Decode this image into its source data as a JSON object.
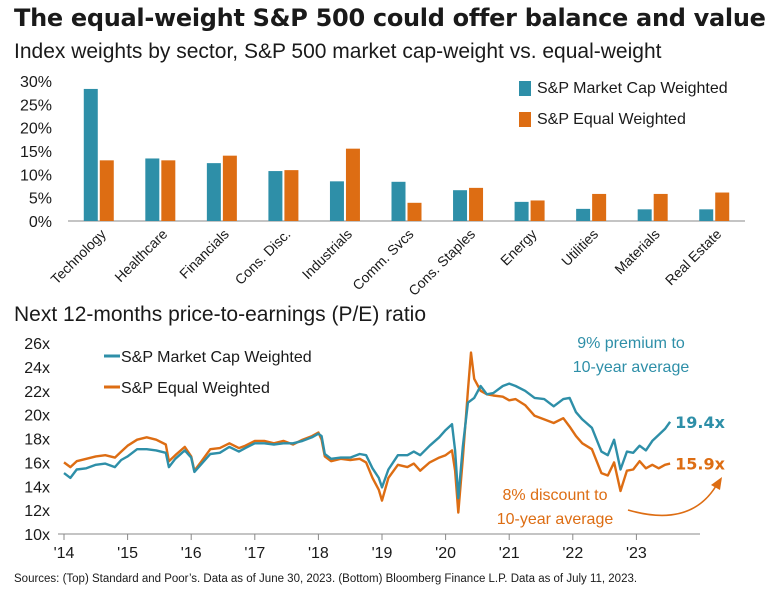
{
  "title": "The equal-weight S&P 500 could offer balance and value",
  "source": "Sources: (Top) Standard and Poor’s. Data as of June 30, 2023. (Bottom) Bloomberg Finance L.P. Data as of July 11, 2023.",
  "colors": {
    "cap": "#2e8fa8",
    "equal": "#dd6d13",
    "text": "#1a1a1a",
    "axis": "#888888"
  },
  "chart_data": [
    {
      "type": "bar",
      "title": "Index weights by sector, S&P 500 market cap-weight vs. equal-weight",
      "categories": [
        "Technology",
        "Healthcare",
        "Financials",
        "Cons. Disc.",
        "Industrials",
        "Comm. Svcs",
        "Cons. Staples",
        "Energy",
        "Utilities",
        "Materials",
        "Real Estate"
      ],
      "series": [
        {
          "name": "S&P Market Cap Weighted",
          "values": [
            28.3,
            13.4,
            12.4,
            10.7,
            8.5,
            8.4,
            6.6,
            4.1,
            2.6,
            2.5,
            2.5
          ]
        },
        {
          "name": "S&P Equal Weighted",
          "values": [
            13.0,
            13.0,
            14.0,
            10.9,
            15.5,
            3.9,
            7.1,
            4.4,
            5.8,
            5.8,
            6.1
          ]
        }
      ],
      "ylim": [
        0,
        30
      ],
      "yticks": [
        "0%",
        "5%",
        "10%",
        "15%",
        "20%",
        "25%",
        "30%"
      ],
      "legend_position": "top-right"
    },
    {
      "type": "line",
      "title": "Next 12-months price-to-earnings (P/E) ratio",
      "ylim": [
        10,
        26
      ],
      "yticks": [
        "10x",
        "12x",
        "14x",
        "16x",
        "18x",
        "20x",
        "22x",
        "24x",
        "26x"
      ],
      "xticks": [
        "'14",
        "'15",
        "'16",
        "'17",
        "'18",
        "'19",
        "'20",
        "'21",
        "'22",
        "'23"
      ],
      "xrange": [
        2014.0,
        2023.53
      ],
      "series": [
        {
          "name": "S&P Market Cap Weighted",
          "end_label": "19.4x",
          "points": [
            [
              2014.0,
              15.1
            ],
            [
              2014.1,
              14.7
            ],
            [
              2014.2,
              15.4
            ],
            [
              2014.35,
              15.5
            ],
            [
              2014.5,
              15.8
            ],
            [
              2014.65,
              15.9
            ],
            [
              2014.8,
              15.6
            ],
            [
              2014.9,
              16.2
            ],
            [
              2015.0,
              16.5
            ],
            [
              2015.15,
              17.1
            ],
            [
              2015.3,
              17.1
            ],
            [
              2015.45,
              17.0
            ],
            [
              2015.6,
              16.8
            ],
            [
              2015.65,
              15.6
            ],
            [
              2015.75,
              16.3
            ],
            [
              2015.9,
              17.0
            ],
            [
              2016.0,
              16.4
            ],
            [
              2016.05,
              15.2
            ],
            [
              2016.15,
              15.8
            ],
            [
              2016.3,
              16.7
            ],
            [
              2016.45,
              16.8
            ],
            [
              2016.6,
              17.3
            ],
            [
              2016.75,
              16.9
            ],
            [
              2016.85,
              17.2
            ],
            [
              2017.0,
              17.6
            ],
            [
              2017.15,
              17.6
            ],
            [
              2017.3,
              17.5
            ],
            [
              2017.45,
              17.6
            ],
            [
              2017.6,
              17.6
            ],
            [
              2017.75,
              17.8
            ],
            [
              2017.9,
              18.1
            ],
            [
              2018.0,
              18.4
            ],
            [
              2018.05,
              18.2
            ],
            [
              2018.1,
              16.7
            ],
            [
              2018.2,
              16.3
            ],
            [
              2018.35,
              16.4
            ],
            [
              2018.5,
              16.4
            ],
            [
              2018.65,
              16.7
            ],
            [
              2018.75,
              16.6
            ],
            [
              2018.85,
              15.5
            ],
            [
              2018.95,
              14.7
            ],
            [
              2019.0,
              13.9
            ],
            [
              2019.1,
              15.4
            ],
            [
              2019.25,
              16.6
            ],
            [
              2019.4,
              16.6
            ],
            [
              2019.5,
              16.9
            ],
            [
              2019.6,
              16.6
            ],
            [
              2019.75,
              17.4
            ],
            [
              2019.9,
              18.1
            ],
            [
              2020.0,
              18.7
            ],
            [
              2020.1,
              19.2
            ],
            [
              2020.15,
              17.0
            ],
            [
              2020.2,
              13.0
            ],
            [
              2020.27,
              17.3
            ],
            [
              2020.35,
              21.0
            ],
            [
              2020.45,
              21.4
            ],
            [
              2020.55,
              22.4
            ],
            [
              2020.65,
              21.7
            ],
            [
              2020.75,
              21.8
            ],
            [
              2020.9,
              22.4
            ],
            [
              2021.0,
              22.6
            ],
            [
              2021.1,
              22.4
            ],
            [
              2021.25,
              22.0
            ],
            [
              2021.4,
              21.4
            ],
            [
              2021.55,
              21.3
            ],
            [
              2021.7,
              20.7
            ],
            [
              2021.85,
              21.3
            ],
            [
              2021.95,
              21.4
            ],
            [
              2022.05,
              20.2
            ],
            [
              2022.15,
              19.6
            ],
            [
              2022.3,
              18.9
            ],
            [
              2022.45,
              16.9
            ],
            [
              2022.55,
              16.6
            ],
            [
              2022.65,
              17.9
            ],
            [
              2022.75,
              15.4
            ],
            [
              2022.85,
              16.9
            ],
            [
              2022.95,
              16.8
            ],
            [
              2023.05,
              17.4
            ],
            [
              2023.15,
              17.0
            ],
            [
              2023.25,
              17.8
            ],
            [
              2023.35,
              18.3
            ],
            [
              2023.45,
              18.8
            ],
            [
              2023.53,
              19.4
            ]
          ]
        },
        {
          "name": "S&P Equal Weighted",
          "end_label": "15.9x",
          "points": [
            [
              2014.0,
              16.0
            ],
            [
              2014.1,
              15.6
            ],
            [
              2014.2,
              16.1
            ],
            [
              2014.35,
              16.3
            ],
            [
              2014.5,
              16.5
            ],
            [
              2014.65,
              16.6
            ],
            [
              2014.8,
              16.4
            ],
            [
              2014.9,
              16.9
            ],
            [
              2015.0,
              17.4
            ],
            [
              2015.15,
              17.9
            ],
            [
              2015.3,
              18.1
            ],
            [
              2015.45,
              17.9
            ],
            [
              2015.6,
              17.5
            ],
            [
              2015.65,
              16.1
            ],
            [
              2015.75,
              16.6
            ],
            [
              2015.9,
              17.3
            ],
            [
              2016.0,
              16.5
            ],
            [
              2016.05,
              15.3
            ],
            [
              2016.15,
              16.0
            ],
            [
              2016.3,
              17.1
            ],
            [
              2016.45,
              17.2
            ],
            [
              2016.6,
              17.6
            ],
            [
              2016.75,
              17.2
            ],
            [
              2016.85,
              17.4
            ],
            [
              2017.0,
              17.8
            ],
            [
              2017.15,
              17.8
            ],
            [
              2017.3,
              17.6
            ],
            [
              2017.45,
              17.8
            ],
            [
              2017.6,
              17.5
            ],
            [
              2017.75,
              17.9
            ],
            [
              2017.9,
              18.2
            ],
            [
              2018.0,
              18.5
            ],
            [
              2018.05,
              17.9
            ],
            [
              2018.1,
              16.5
            ],
            [
              2018.2,
              16.1
            ],
            [
              2018.35,
              16.3
            ],
            [
              2018.5,
              16.2
            ],
            [
              2018.65,
              16.3
            ],
            [
              2018.75,
              16.0
            ],
            [
              2018.85,
              14.7
            ],
            [
              2018.95,
              13.7
            ],
            [
              2019.0,
              12.8
            ],
            [
              2019.1,
              14.7
            ],
            [
              2019.25,
              15.8
            ],
            [
              2019.4,
              15.6
            ],
            [
              2019.5,
              15.9
            ],
            [
              2019.6,
              15.3
            ],
            [
              2019.75,
              16.0
            ],
            [
              2019.9,
              16.4
            ],
            [
              2020.0,
              16.6
            ],
            [
              2020.1,
              17.0
            ],
            [
              2020.15,
              15.3
            ],
            [
              2020.2,
              11.8
            ],
            [
              2020.27,
              16.3
            ],
            [
              2020.35,
              22.0
            ],
            [
              2020.4,
              25.2
            ],
            [
              2020.45,
              23.0
            ],
            [
              2020.55,
              22.0
            ],
            [
              2020.65,
              21.7
            ],
            [
              2020.75,
              21.6
            ],
            [
              2020.9,
              21.5
            ],
            [
              2021.0,
              21.2
            ],
            [
              2021.1,
              21.3
            ],
            [
              2021.25,
              20.8
            ],
            [
              2021.4,
              19.9
            ],
            [
              2021.55,
              19.6
            ],
            [
              2021.7,
              19.3
            ],
            [
              2021.85,
              19.7
            ],
            [
              2021.95,
              19.0
            ],
            [
              2022.05,
              18.2
            ],
            [
              2022.15,
              17.6
            ],
            [
              2022.3,
              17.1
            ],
            [
              2022.45,
              15.1
            ],
            [
              2022.55,
              14.9
            ],
            [
              2022.65,
              16.0
            ],
            [
              2022.75,
              13.6
            ],
            [
              2022.85,
              15.3
            ],
            [
              2022.95,
              15.4
            ],
            [
              2023.05,
              16.1
            ],
            [
              2023.15,
              15.5
            ],
            [
              2023.25,
              15.8
            ],
            [
              2023.35,
              15.5
            ],
            [
              2023.45,
              15.8
            ],
            [
              2023.53,
              15.9
            ]
          ]
        }
      ],
      "annotations": [
        {
          "text_lines": [
            "9% premium to",
            "10-year average"
          ],
          "series": "S&P Market Cap Weighted"
        },
        {
          "text_lines": [
            "8% discount to",
            "10-year average"
          ],
          "series": "S&P Equal Weighted"
        }
      ]
    }
  ]
}
